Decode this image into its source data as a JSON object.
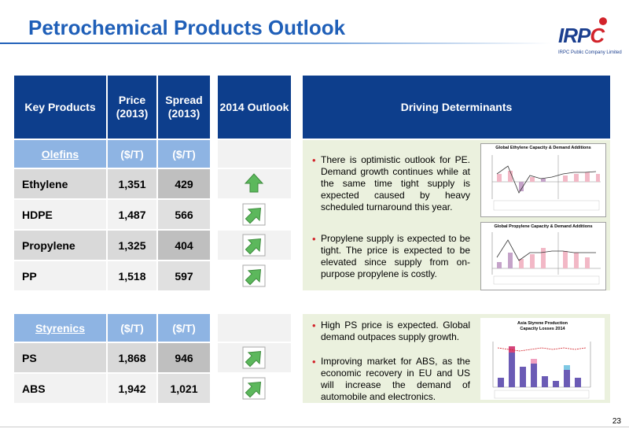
{
  "page": {
    "title": "Petrochemical Products Outlook",
    "number": "23"
  },
  "logo": {
    "text_main": "IRP",
    "text_accent": "C",
    "subtitle": "IRPC Public Company Limited"
  },
  "table": {
    "headers": {
      "key_products": "Key Products",
      "price_line1": "Price",
      "price_line2": "(2013)",
      "spread_line1": "Spread",
      "spread_line2": "(2013)",
      "outlook": "2014 Outlook",
      "determinants": "Driving Determinants"
    },
    "groups": [
      {
        "category": "Olefins",
        "price_unit": "($/T)",
        "spread_unit": "($/T)",
        "rows": [
          {
            "product": "Ethylene",
            "price": "1,351",
            "spread": "429",
            "outlook": "up"
          },
          {
            "product": "HDPE",
            "price": "1,487",
            "spread": "566",
            "outlook": "up-right"
          },
          {
            "product": "Propylene",
            "price": "1,325",
            "spread": "404",
            "outlook": "up-right"
          },
          {
            "product": "PP",
            "price": "1,518",
            "spread": "597",
            "outlook": "up-right"
          }
        ]
      },
      {
        "category": "Styrenics",
        "price_unit": "($/T)",
        "spread_unit": "($/T)",
        "rows": [
          {
            "product": "PS",
            "price": "1,868",
            "spread": "946",
            "outlook": "up-right"
          },
          {
            "product": "ABS",
            "price": "1,942",
            "spread": "1,021",
            "outlook": "up-right"
          }
        ]
      }
    ]
  },
  "determinants": {
    "olefins": [
      "There is optimistic outlook for PE. Demand growth continues while at the same time tight supply is expected caused by heavy scheduled turnaround this year.",
      "Propylene supply is expected to be tight. The price is expected to be elevated since supply from on-purpose propylene is costly."
    ],
    "styrenics": [
      "High PS price is expected. Global demand outpaces supply growth.",
      "Improving market for ABS, as the economic recovery in EU and US will increase the demand of automobile and electronics."
    ]
  },
  "mini_charts": {
    "ethylene_title": "Global Ethylene Capacity & Demand Additions",
    "propylene_title": "Global Propylene Capacity & Demand Additions",
    "styrene_title_line1": "Asia Styrene Production",
    "styrene_title_line2": "Capacity Losses 2014"
  },
  "colors": {
    "header_blue": "#0d3e8c",
    "category_blue": "#8eb4e3",
    "determinant_bg": "#ebf1de",
    "arrow_green": "#5cb85c",
    "title_blue": "#1f5fb8"
  }
}
